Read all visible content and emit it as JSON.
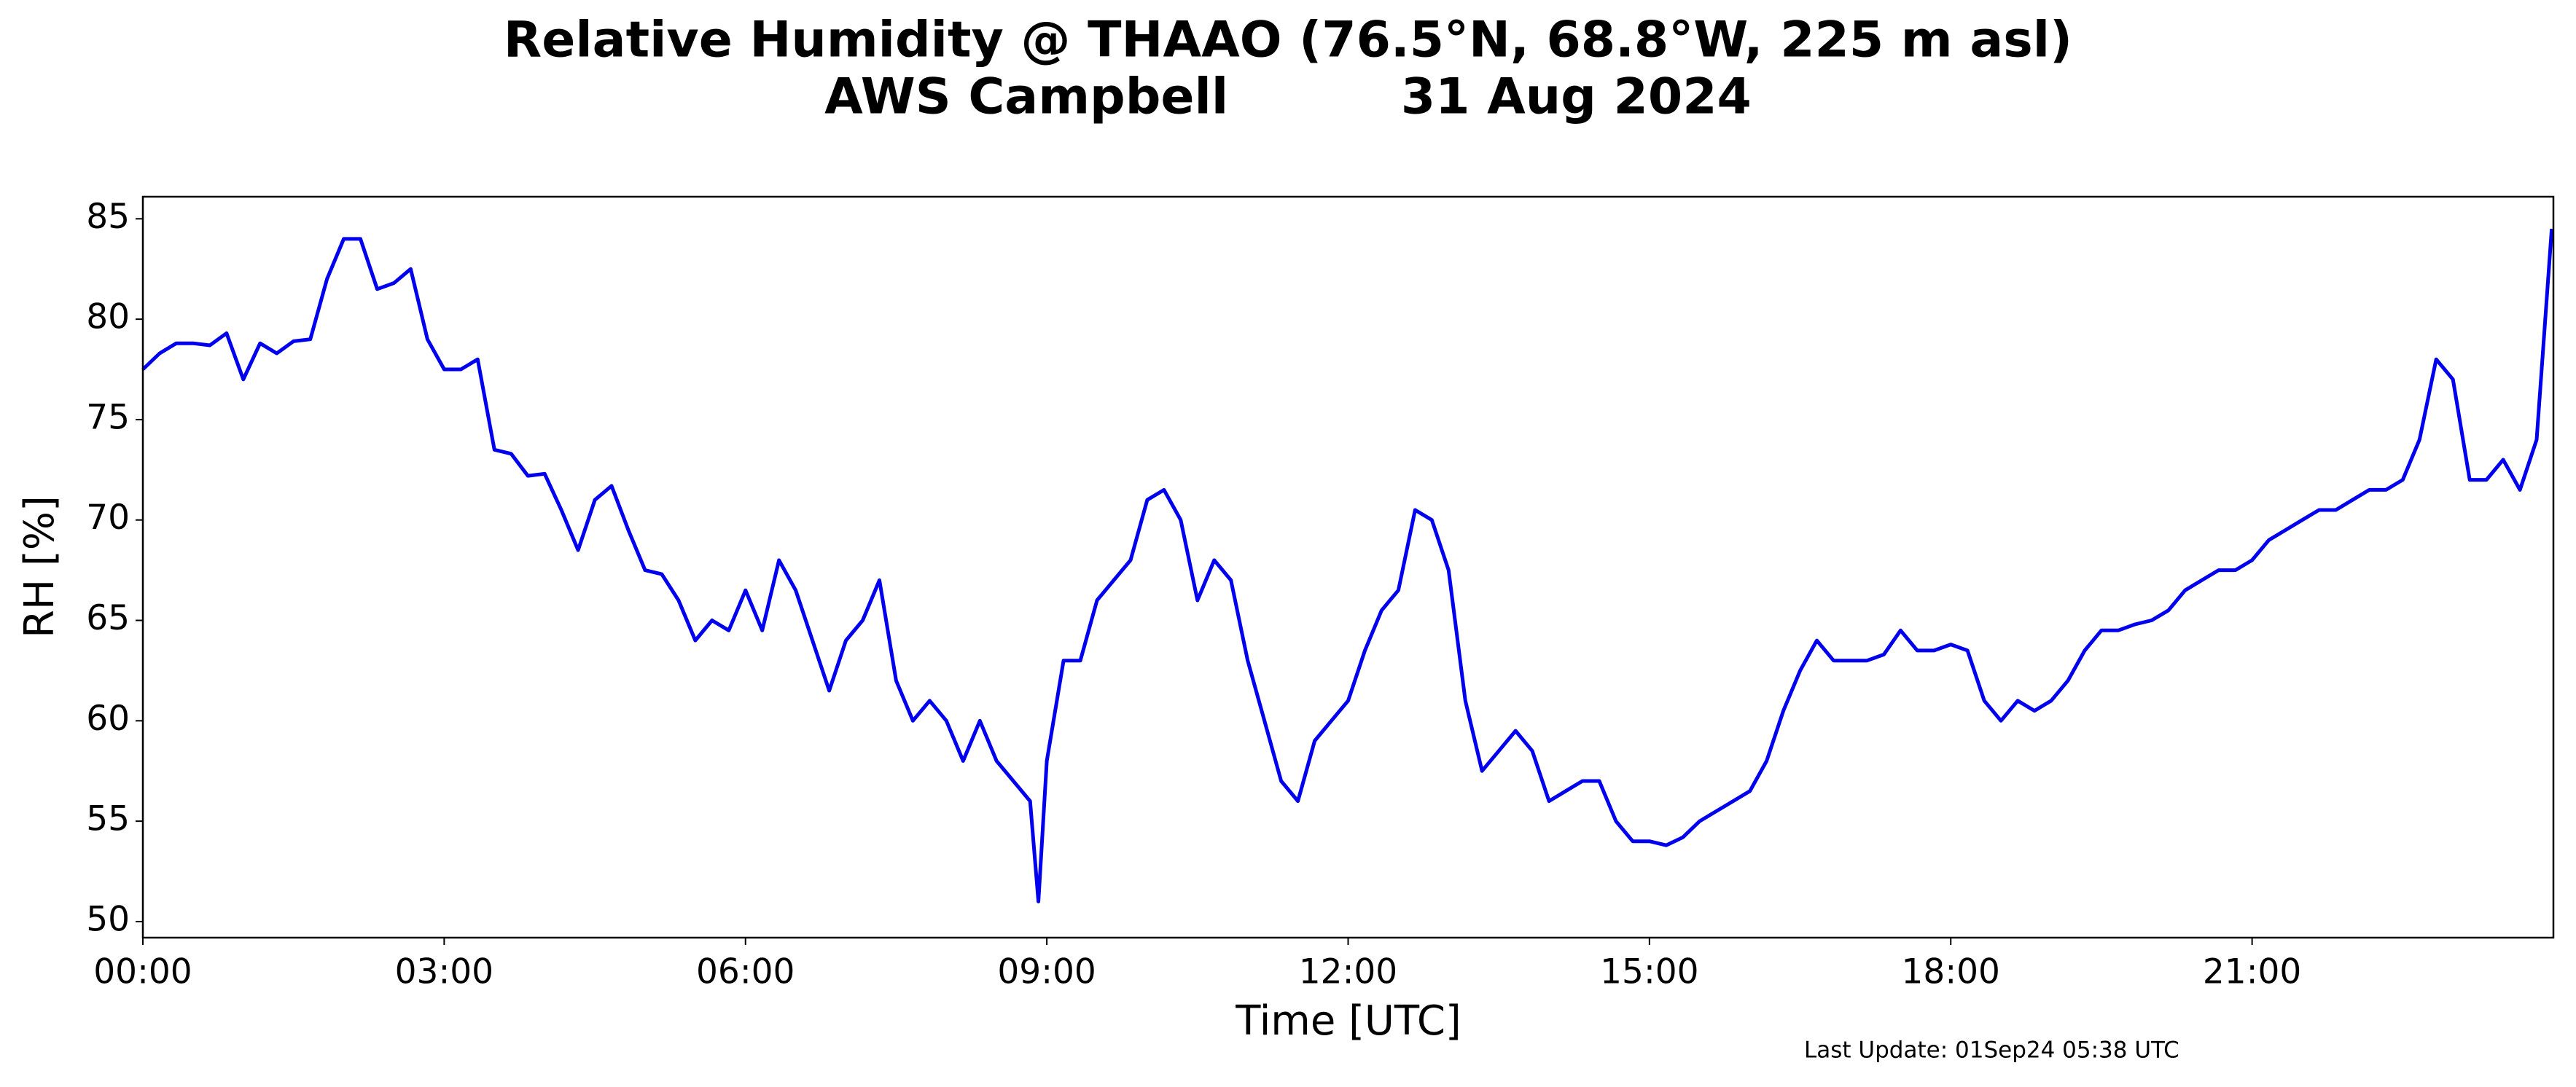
{
  "chart_data": {
    "type": "line",
    "title": "Relative Humidity @ THAAO (76.5°N, 68.8°W, 225 m asl)",
    "subtitle": "AWS Campbell          31 Aug 2024",
    "x_label": "Time [UTC]",
    "y_label": "RH [%]",
    "annotation": "Last Update: 01Sep24 05:38 UTC",
    "color": "#0000ee",
    "x": [
      "00:00",
      "00:10",
      "00:20",
      "00:30",
      "00:40",
      "00:50",
      "01:00",
      "01:10",
      "01:20",
      "01:30",
      "01:40",
      "01:50",
      "02:00",
      "02:10",
      "02:20",
      "02:30",
      "02:40",
      "02:50",
      "03:00",
      "03:10",
      "03:20",
      "03:30",
      "03:40",
      "03:50",
      "04:00",
      "04:10",
      "04:20",
      "04:30",
      "04:40",
      "04:50",
      "05:00",
      "05:10",
      "05:20",
      "05:30",
      "05:40",
      "05:50",
      "06:00",
      "06:10",
      "06:20",
      "06:30",
      "06:40",
      "06:50",
      "07:00",
      "07:10",
      "07:20",
      "07:30",
      "07:40",
      "07:50",
      "08:00",
      "08:10",
      "08:20",
      "08:30",
      "08:40",
      "08:50",
      "08:55",
      "09:00",
      "09:10",
      "09:20",
      "09:30",
      "09:40",
      "09:50",
      "10:00",
      "10:10",
      "10:20",
      "10:30",
      "10:40",
      "10:50",
      "11:00",
      "11:10",
      "11:20",
      "11:30",
      "11:40",
      "11:50",
      "12:00",
      "12:10",
      "12:20",
      "12:30",
      "12:40",
      "12:50",
      "13:00",
      "13:10",
      "13:20",
      "13:30",
      "13:40",
      "13:50",
      "14:00",
      "14:10",
      "14:20",
      "14:30",
      "14:40",
      "14:50",
      "15:00",
      "15:10",
      "15:20",
      "15:30",
      "15:40",
      "15:50",
      "16:00",
      "16:10",
      "16:20",
      "16:30",
      "16:40",
      "16:50",
      "17:00",
      "17:10",
      "17:20",
      "17:30",
      "17:40",
      "17:50",
      "18:00",
      "18:10",
      "18:20",
      "18:30",
      "18:40",
      "18:50",
      "19:00",
      "19:10",
      "19:20",
      "19:30",
      "19:40",
      "19:50",
      "20:00",
      "20:10",
      "20:20",
      "20:30",
      "20:40",
      "20:50",
      "21:00",
      "21:10",
      "21:20",
      "21:30",
      "21:40",
      "21:50",
      "22:00",
      "22:10",
      "22:20",
      "22:30",
      "22:40",
      "22:50",
      "23:00",
      "23:10",
      "23:20",
      "23:30",
      "23:40",
      "23:50",
      "23:59"
    ],
    "values": [
      77.5,
      78.3,
      78.8,
      78.8,
      78.7,
      79.3,
      77.0,
      78.8,
      78.3,
      78.9,
      79.0,
      82,
      84,
      84,
      81.5,
      81.8,
      82.5,
      79,
      77.5,
      77.5,
      78,
      73.5,
      73.3,
      72.2,
      72.3,
      70.5,
      68.5,
      71,
      71.7,
      69.5,
      67.5,
      67.3,
      66,
      64,
      65,
      64.5,
      66.5,
      64.5,
      68,
      66.5,
      64,
      61.5,
      64,
      65,
      67,
      62,
      60,
      61,
      60,
      58,
      60,
      58,
      57,
      56,
      51,
      58,
      63,
      63,
      66,
      67,
      68,
      71,
      71.5,
      70,
      66,
      68,
      67,
      63,
      60,
      57,
      56,
      59,
      60,
      61,
      63.5,
      65.5,
      66.5,
      70.5,
      70,
      67.5,
      61,
      57.5,
      58.5,
      59.5,
      58.5,
      56,
      56.5,
      57,
      57,
      55,
      54,
      54,
      53.8,
      54.2,
      55,
      55.5,
      56,
      56.5,
      58,
      60.5,
      62.5,
      64,
      63,
      63,
      63,
      63.3,
      64.5,
      63.5,
      63.5,
      63.8,
      63.5,
      61,
      60,
      61,
      60.5,
      61,
      62,
      63.5,
      64.5,
      64.5,
      64.8,
      65,
      65.5,
      66.5,
      67,
      67.5,
      67.5,
      68,
      69,
      69.5,
      70,
      70.5,
      70.5,
      71,
      71.5,
      71.5,
      72,
      74,
      78,
      77,
      72,
      72,
      73,
      71.5,
      74,
      84.5
    ],
    "xlim": [
      "00:00",
      "24:00"
    ],
    "xticks": [
      "00:00",
      "03:00",
      "06:00",
      "09:00",
      "12:00",
      "15:00",
      "18:00",
      "21:00"
    ],
    "ylim": [
      49.2,
      86.1
    ],
    "yticks": [
      50,
      55,
      60,
      65,
      70,
      75,
      80,
      85
    ]
  }
}
